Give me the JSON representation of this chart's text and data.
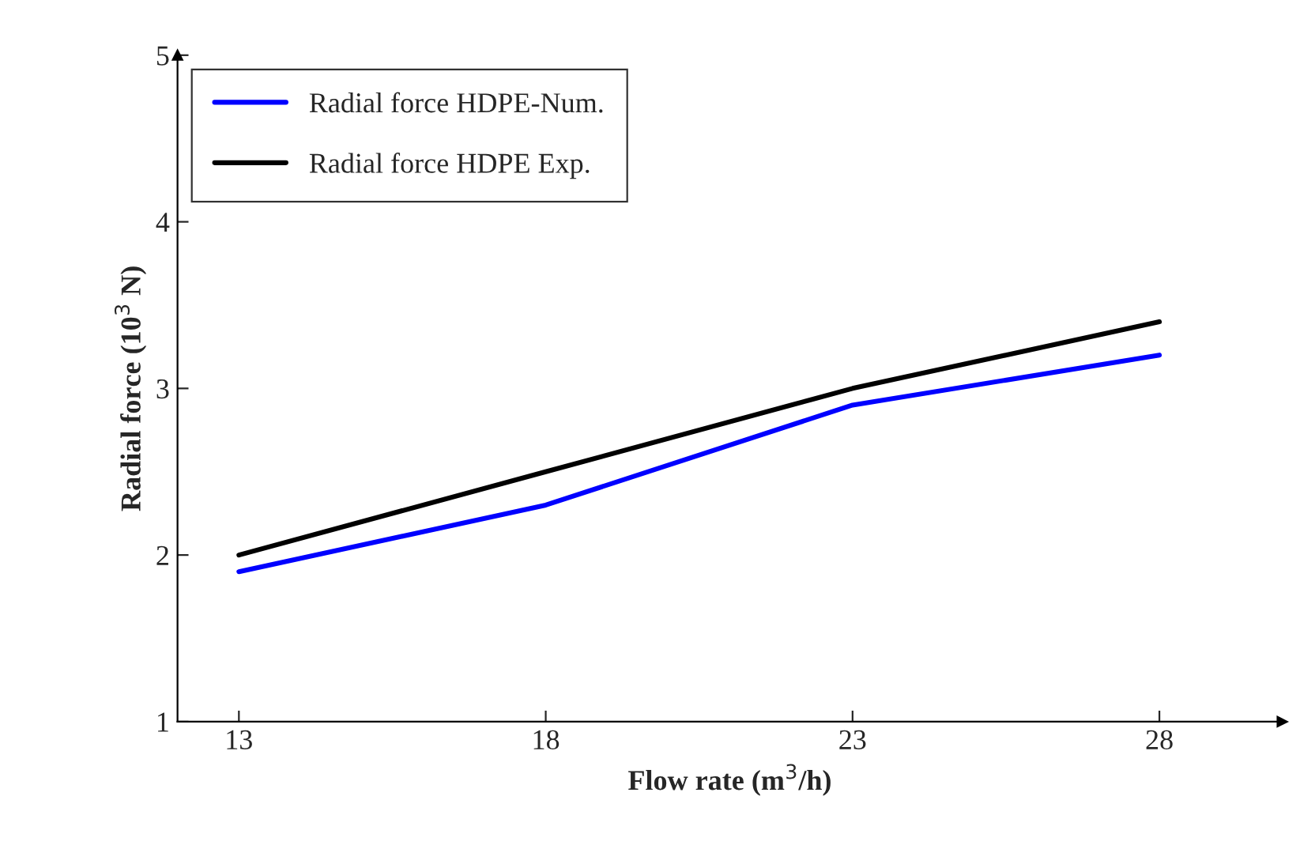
{
  "chart_data": {
    "type": "line",
    "xlabel": "Flow rate (m$^{3}$/h)",
    "ylabel": "Radial force (10$^{3}$ N)",
    "x": [
      13,
      18,
      23,
      28
    ],
    "series": [
      {
        "name": "Radial force HDPE-Num.",
        "color": "#0000ff",
        "values": [
          1.9,
          2.3,
          2.9,
          3.2
        ]
      },
      {
        "name": "Radial force HDPE Exp.",
        "color": "#000000",
        "values": [
          2.0,
          2.5,
          3.0,
          3.4
        ]
      }
    ],
    "xlim": [
      12,
      30
    ],
    "ylim": [
      1,
      5
    ],
    "xticks": [
      13,
      18,
      23,
      28
    ],
    "yticks": [
      1,
      2,
      3,
      4,
      5
    ],
    "grid": false,
    "legend": "top left",
    "marker": "none",
    "line_style": "solid"
  }
}
